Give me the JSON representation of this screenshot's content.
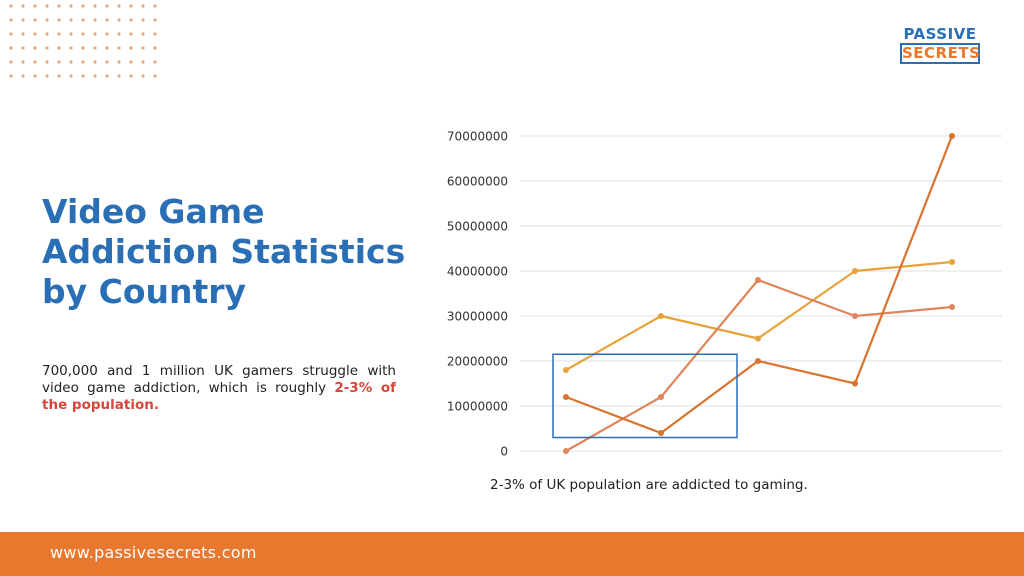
{
  "brand": {
    "logo_top": "PASSIVE",
    "logo_bottom": "SECRETS",
    "url": "www.passivesecrets.com",
    "colors": {
      "blue": "#2a6fb5",
      "orange": "#e8782e",
      "highlight_red": "#d9453a"
    }
  },
  "headline": {
    "title": "Video Game Addiction Statistics by Country",
    "description_text": "700,000 and 1 million UK gamers struggle with video game addiction, which is roughly ",
    "description_highlight": "2-3% of the population."
  },
  "chart_data": {
    "type": "line",
    "caption": "2-3% of UK population are addicted to gaming.",
    "y_ticks": [
      "70000000",
      "60000000",
      "50000000",
      "40000000",
      "30000000",
      "20000000",
      "10000000",
      "0"
    ],
    "ylim": [
      0,
      70000000
    ],
    "grid": true,
    "series": [
      {
        "color": "#e8a23a",
        "values": [
          18000000,
          30000000,
          25000000,
          40000000,
          42000000
        ]
      },
      {
        "color": "#e0855a",
        "values": [
          0,
          12000000,
          38000000,
          30000000,
          32000000
        ]
      },
      {
        "color": "#d9732e",
        "values": [
          12000000,
          4000000,
          20000000,
          15000000,
          70000000
        ]
      }
    ],
    "highlight_box": {
      "x_start": 0,
      "x_end": 2,
      "y_low": 3000000,
      "y_high": 21500000,
      "color": "#2a6fb5"
    }
  }
}
